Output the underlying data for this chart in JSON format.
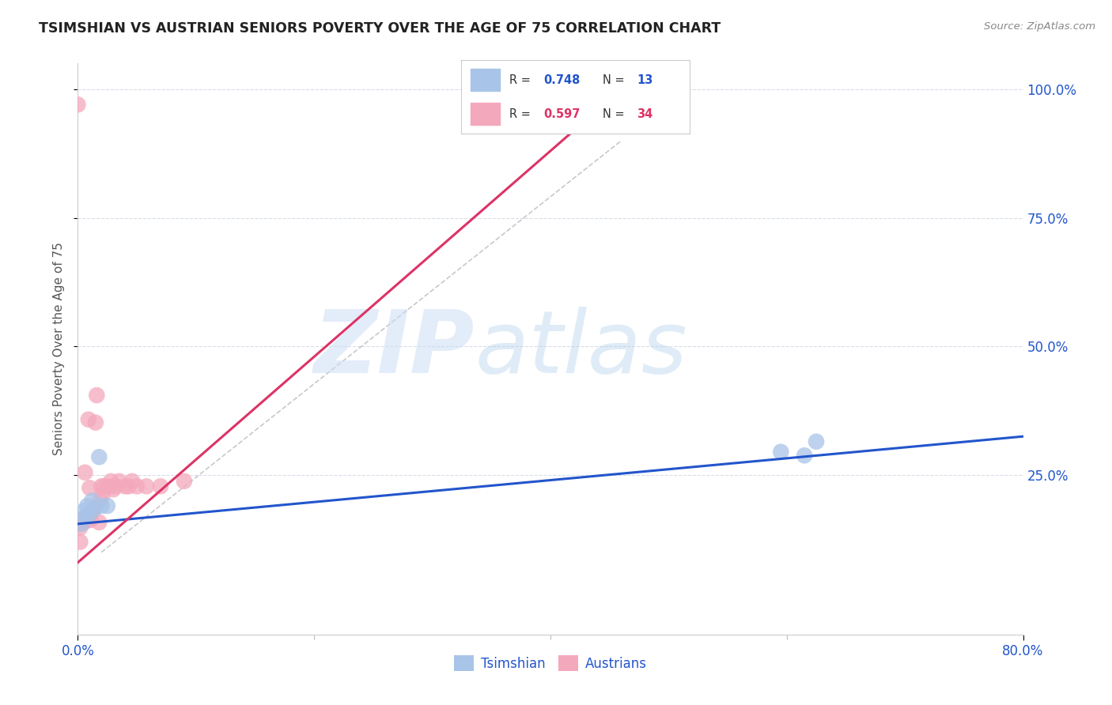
{
  "title": "TSIMSHIAN VS AUSTRIAN SENIORS POVERTY OVER THE AGE OF 75 CORRELATION CHART",
  "source_text": "Source: ZipAtlas.com",
  "ylabel": "Seniors Poverty Over the Age of 75",
  "xmin": 0.0,
  "xmax": 0.8,
  "ymin": -0.06,
  "ymax": 1.05,
  "yticks": [
    0.25,
    0.5,
    0.75,
    1.0
  ],
  "xticks_minor": [
    0.2,
    0.4,
    0.6
  ],
  "legend_r_blue": "0.748",
  "legend_n_blue": "13",
  "legend_r_pink": "0.597",
  "legend_n_pink": "34",
  "blue_dot_color": "#a8c4e8",
  "pink_dot_color": "#f4a8bc",
  "blue_line_color": "#2255cc",
  "pink_line_color": "#dd3366",
  "grid_color": "#d8dce8",
  "bg_color": "#ffffff",
  "tsimshian_x": [
    0.003,
    0.005,
    0.007,
    0.008,
    0.01,
    0.012,
    0.014,
    0.018,
    0.02,
    0.025,
    0.595,
    0.615,
    0.625
  ],
  "tsimshian_y": [
    0.155,
    0.18,
    0.17,
    0.19,
    0.175,
    0.2,
    0.185,
    0.285,
    0.19,
    0.19,
    0.295,
    0.288,
    0.315
  ],
  "austrians_x": [
    0.0,
    0.002,
    0.004,
    0.005,
    0.006,
    0.007,
    0.008,
    0.009,
    0.01,
    0.011,
    0.012,
    0.013,
    0.015,
    0.016,
    0.018,
    0.019,
    0.02,
    0.021,
    0.022,
    0.025,
    0.026,
    0.028,
    0.03,
    0.032,
    0.035,
    0.04,
    0.043,
    0.046,
    0.05,
    0.058,
    0.07,
    0.09,
    0.0,
    0.002
  ],
  "austrians_y": [
    0.155,
    0.148,
    0.158,
    0.165,
    0.255,
    0.16,
    0.172,
    0.358,
    0.225,
    0.163,
    0.178,
    0.182,
    0.352,
    0.405,
    0.158,
    0.202,
    0.228,
    0.212,
    0.228,
    0.228,
    0.228,
    0.238,
    0.222,
    0.228,
    0.238,
    0.228,
    0.228,
    0.238,
    0.228,
    0.228,
    0.228,
    0.238,
    0.97,
    0.12
  ],
  "blue_line_x0": 0.0,
  "blue_line_x1": 0.8,
  "blue_line_y0": 0.155,
  "blue_line_y1": 0.325,
  "pink_line_x0": 0.0,
  "pink_line_x1": 0.42,
  "pink_line_y0": 0.08,
  "pink_line_y1": 0.92,
  "ref_line_x0": 0.02,
  "ref_line_x1": 0.46,
  "ref_line_y0": 0.1,
  "ref_line_y1": 0.9
}
